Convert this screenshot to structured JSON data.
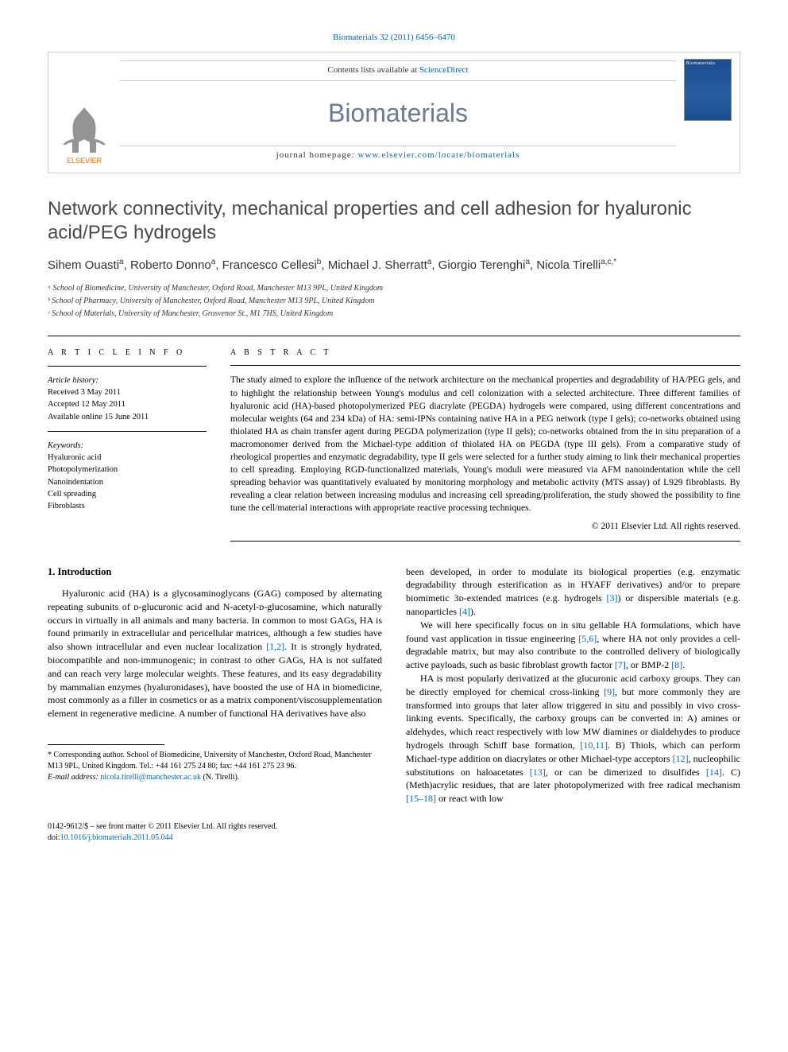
{
  "citation": "Biomaterials 32 (2011) 6456–6470",
  "header": {
    "contents_prefix": "Contents lists available at ",
    "contents_link": "ScienceDirect",
    "journal": "Biomaterials",
    "homepage_prefix": "journal homepage: ",
    "homepage_url": "www.elsevier.com/locate/biomaterials",
    "elsevier_label": "ELSEVIER",
    "cover_label": "Biomaterials"
  },
  "title": "Network connectivity, mechanical properties and cell adhesion for hyaluronic acid/PEG hydrogels",
  "authors_html": "Sihem Ouasti<sup>a</sup>, Roberto Donno<sup>a</sup>, Francesco Cellesi<sup>b</sup>, Michael J. Sherratt<sup>a</sup>, Giorgio Terenghi<sup>a</sup>, Nicola Tirelli<sup>a,c,*</sup>",
  "affiliations": [
    "ᵃ School of Biomedicine, University of Manchester, Oxford Road, Manchester M13 9PL, United Kingdom",
    "ᵇ School of Pharmacy, University of Manchester, Oxford Road, Manchester M13 9PL, United Kingdom",
    "ᶜ School of Materials, University of Manchester, Grosvenor St., M1 7HS, United Kingdom"
  ],
  "info": {
    "heading": "A R T I C L E  I N F O",
    "history_label": "Article history:",
    "received": "Received 3 May 2011",
    "accepted": "Accepted 12 May 2011",
    "online": "Available online 15 June 2011",
    "keywords_label": "Keywords:",
    "keywords": [
      "Hyaluronic acid",
      "Photopolymerization",
      "Nanoindentation",
      "Cell spreading",
      "Fibroblasts"
    ]
  },
  "abstract": {
    "heading": "A B S T R A C T",
    "text": "The study aimed to explore the influence of the network architecture on the mechanical properties and degradability of HA/PEG gels, and to highlight the relationship between Young's modulus and cell colonization with a selected architecture. Three different families of hyaluronic acid (HA)-based photopolymerized PEG diacrylate (PEGDA) hydrogels were compared, using different concentrations and molecular weights (64 and 234 kDa) of HA: semi-IPNs containing native HA in a PEG network (type I gels); co-networks obtained using thiolated HA as chain transfer agent during PEGDA polymerization (type II gels); co-networks obtained from the in situ preparation of a macromonomer derived from the Michael-type addition of thiolated HA on PEGDA (type III gels). From a comparative study of rheological properties and enzymatic degradability, type II gels were selected for a further study aiming to link their mechanical properties to cell spreading. Employing RGD-functionalized materials, Young's moduli were measured via AFM nanoindentation while the cell spreading behavior was quantitatively evaluated by monitoring morphology and metabolic activity (MTS assay) of L929 fibroblasts. By revealing a clear relation between increasing modulus and increasing cell spreading/proliferation, the study showed the possibility to fine tune the cell/material interactions with appropriate reactive processing techniques.",
    "copyright": "© 2011 Elsevier Ltd. All rights reserved."
  },
  "body": {
    "section_heading": "1. Introduction",
    "col1_p1_a": "Hyaluronic acid (HA) is a glycosaminoglycans (GAG) composed by alternating repeating subunits of ᴅ-glucuronic acid and N-acetyl-ᴅ-glucosamine, which naturally occurs in virtually in all animals and many bacteria. In common to most GAGs, HA is found primarily in extracellular and pericellular matrices, although a few studies have also shown intracellular and even nuclear localization ",
    "ref_1_2": "[1,2]",
    "col1_p1_b": ". It is strongly hydrated, biocompatible and non-immunogenic; in contrast to other GAGs, HA is not sulfated and can reach very large molecular weights. These features, and its easy degradability by mammalian enzymes (hyaluronidases), have boosted the use of HA in biomedicine, most commonly as a filler in cosmetics or as a matrix component/viscosupplementation element in regenerative medicine. A number of functional HA derivatives have also",
    "col2_p1_a": "been developed, in order to modulate its biological properties (e.g. enzymatic degradability through esterification as in HYAFF derivatives) and/or to prepare biomimetic 3ᴅ-extended matrices (e.g. hydrogels ",
    "ref_3": "[3]",
    "col2_p1_b": ") or dispersible materials (e.g. nanoparticles ",
    "ref_4": "[4]",
    "col2_p1_c": ").",
    "col2_p2_a": "We will here specifically focus on in situ gellable HA formulations, which have found vast application in tissue engineering ",
    "ref_5_6": "[5,6]",
    "col2_p2_b": ", where HA not only provides a cell-degradable matrix, but may also contribute to the controlled delivery of biologically active payloads, such as basic fibroblast growth factor ",
    "ref_7": "[7]",
    "col2_p2_c": ", or BMP-2 ",
    "ref_8": "[8]",
    "col2_p2_d": ".",
    "col2_p3_a": "HA is most popularly derivatized at the glucuronic acid carboxy groups. They can be directly employed for chemical cross-linking ",
    "ref_9": "[9]",
    "col2_p3_b": ", but more commonly they are transformed into groups that later allow triggered in situ and possibly in vivo cross-linking events. Specifically, the carboxy groups can be converted in: A) amines or aldehydes, which react respectively with low MW diamines or dialdehydes to produce hydrogels through Schiff base formation, ",
    "ref_10_11": "[10,11]",
    "col2_p3_c": ". B) Thiols, which can perform Michael-type addition on diacrylates or other Michael-type acceptors ",
    "ref_12": "[12]",
    "col2_p3_d": ", nucleophilic substitutions on haloacetates ",
    "ref_13": "[13]",
    "col2_p3_e": ", or can be dimerized to disulfides ",
    "ref_14": "[14]",
    "col2_p3_f": ". C) (Meth)acrylic residues, that are later photopolymerized with free radical mechanism ",
    "ref_15_18": "[15–18]",
    "col2_p3_g": " or react with low"
  },
  "footnote": {
    "corresponding": "* Corresponding author. School of Biomedicine, University of Manchester, Oxford Road, Manchester M13 9PL, United Kingdom. Tel.: +44 161 275 24 80; fax: +44 161 275 23 96.",
    "email_label": "E-mail address: ",
    "email": "nicola.tirelli@manchester.ac.uk",
    "email_who": " (N. Tirelli)."
  },
  "footer": {
    "issn": "0142-9612/$ – see front matter © 2011 Elsevier Ltd. All rights reserved.",
    "doi_prefix": "doi:",
    "doi": "10.1016/j.biomaterials.2011.05.044"
  },
  "colors": {
    "link": "#0066cc",
    "journal_gray": "#6b7a8f",
    "elsevier_orange": "#ff6a00"
  }
}
